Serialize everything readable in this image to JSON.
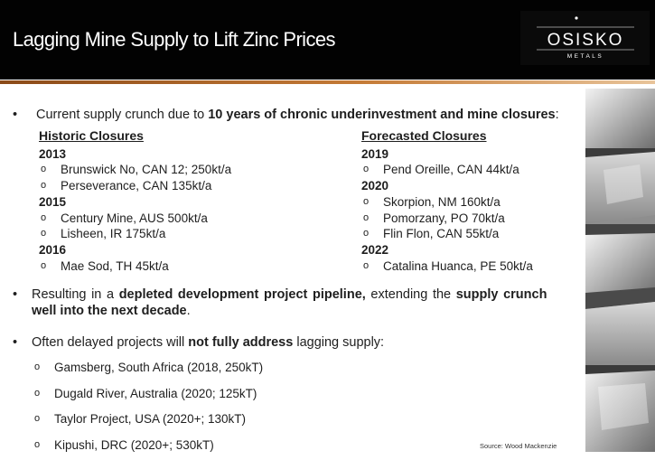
{
  "header": {
    "title": "Lagging Mine Supply to Lift Zinc Prices"
  },
  "logo": {
    "name": "OSISKO",
    "subtitle": "METALS"
  },
  "bullet1": {
    "marker": "•",
    "prefix": "Current supply crunch due to ",
    "bold": "10 years of chronic underinvestment and mine closures",
    "suffix": ":"
  },
  "historic": {
    "heading": "Historic Closures",
    "groups": [
      {
        "year": "2013",
        "items": [
          "Brunswick No, CAN  12; 250kt/a",
          "Perseverance, CAN 135kt/a"
        ]
      },
      {
        "year": "2015",
        "items": [
          "Century Mine, AUS 500kt/a",
          "Lisheen, IR 175kt/a"
        ]
      },
      {
        "year": "2016",
        "items": [
          "Mae Sod, TH 45kt/a"
        ]
      }
    ]
  },
  "forecasted": {
    "heading": "Forecasted Closures",
    "groups": [
      {
        "year": "2019",
        "items": [
          "Pend Oreille, CAN 44kt/a"
        ]
      },
      {
        "year": "2020",
        "items": [
          "Skorpion, NM 160kt/a",
          "Pomorzany, PO 70kt/a",
          "Flin Flon, CAN 55kt/a"
        ]
      },
      {
        "year": "2022",
        "items": [
          "Catalina Huanca, PE 50kt/a"
        ]
      }
    ]
  },
  "bullet2": {
    "marker": "•",
    "p1": "Resulting in a ",
    "b1": "depleted development project pipeline,",
    "p2": " extending the ",
    "b2": "supply crunch",
    "b3": "well into the next decade",
    "p3": "."
  },
  "bullet3": {
    "marker": "•",
    "p1": "Often delayed projects will ",
    "b1": "not fully address",
    "p2": " lagging supply:"
  },
  "projects": [
    "Gamsberg, South Africa (2018, 250kT)",
    "Dugald River, Australia  (2020; 125kT)",
    "Taylor Project, USA (2020+; 130kT)",
    "Kipushi, DRC (2020+; 530kT)"
  ],
  "sub_marker": "o",
  "source": "Source: Wood Mackenzie",
  "colors": {
    "header_bg": "#020202",
    "accent_rule": "#c47a36",
    "text": "#1e1e1e"
  }
}
